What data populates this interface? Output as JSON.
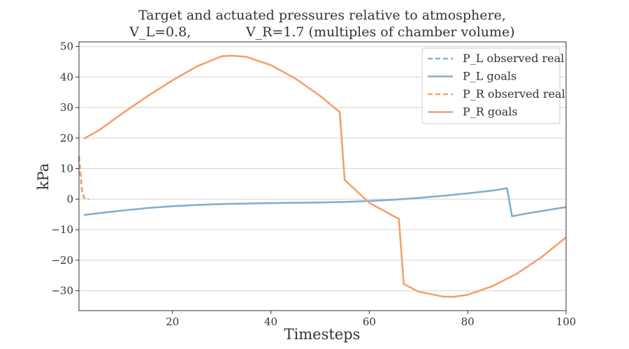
{
  "chart_data": {
    "type": "line",
    "title_line1": "Target and actuated pressures relative to atmosphere,",
    "title_line2": "V_L=0.8,             V_R=1.7 (multiples of chamber volume)",
    "xlabel": "Timesteps",
    "ylabel": "kPa",
    "xlim": [
      1,
      100
    ],
    "ylim": [
      -36.5,
      51.5
    ],
    "x_ticks": [
      20,
      40,
      60,
      80,
      100
    ],
    "y_ticks": [
      50,
      40,
      30,
      20,
      10,
      0,
      -10,
      -20,
      -30
    ],
    "y_tick_labels": [
      "50",
      "40",
      "30",
      "20",
      "10",
      "0",
      "−10",
      "−20",
      "−30"
    ],
    "grid": "horizontal",
    "legend_position": "top-right",
    "colors": {
      "p_l": "#7fafd2",
      "p_r": "#f5a06c",
      "grid": "#d9d9d9",
      "axis": "#333333"
    },
    "series": [
      {
        "name": "P_L observed real",
        "style": "dashed",
        "color_key": "p_l",
        "x": [
          1,
          1.3,
          1.6,
          2.0,
          2.5,
          3.0
        ],
        "y": [
          14,
          8,
          3,
          0.5,
          0,
          0
        ]
      },
      {
        "name": "P_L goals",
        "style": "solid",
        "color_key": "p_l",
        "x": [
          2,
          5,
          10,
          15,
          20,
          25,
          30,
          40,
          50,
          55,
          60,
          65,
          70,
          75,
          80,
          85,
          88,
          89,
          92,
          95,
          100
        ],
        "y": [
          -5.2,
          -4.6,
          -3.7,
          -2.9,
          -2.3,
          -1.9,
          -1.6,
          -1.3,
          -1.1,
          -0.9,
          -0.6,
          -0.2,
          0.4,
          1.1,
          1.9,
          2.8,
          3.6,
          -5.6,
          -4.7,
          -3.9,
          -2.6
        ]
      },
      {
        "name": "P_R observed real",
        "style": "dashed",
        "color_key": "p_r",
        "x": [
          1,
          1.3,
          1.6,
          2.0,
          2.5,
          3.0
        ],
        "y": [
          14,
          9,
          3,
          0.5,
          0,
          0
        ]
      },
      {
        "name": "P_R goals",
        "style": "solid",
        "color_key": "p_r",
        "x": [
          2,
          5,
          10,
          15,
          20,
          25,
          30,
          32,
          35,
          40,
          45,
          50,
          54,
          55,
          60,
          65,
          66,
          67,
          70,
          75,
          77,
          80,
          85,
          90,
          95,
          100
        ],
        "y": [
          19.8,
          22.5,
          28.3,
          33.8,
          38.9,
          43.5,
          46.8,
          47.0,
          46.6,
          43.9,
          39.5,
          33.8,
          28.5,
          6.3,
          -1.2,
          -5.6,
          -6.3,
          -27.8,
          -30.3,
          -31.9,
          -32.0,
          -31.3,
          -28.5,
          -24.4,
          -19.0,
          -12.5
        ]
      }
    ]
  }
}
